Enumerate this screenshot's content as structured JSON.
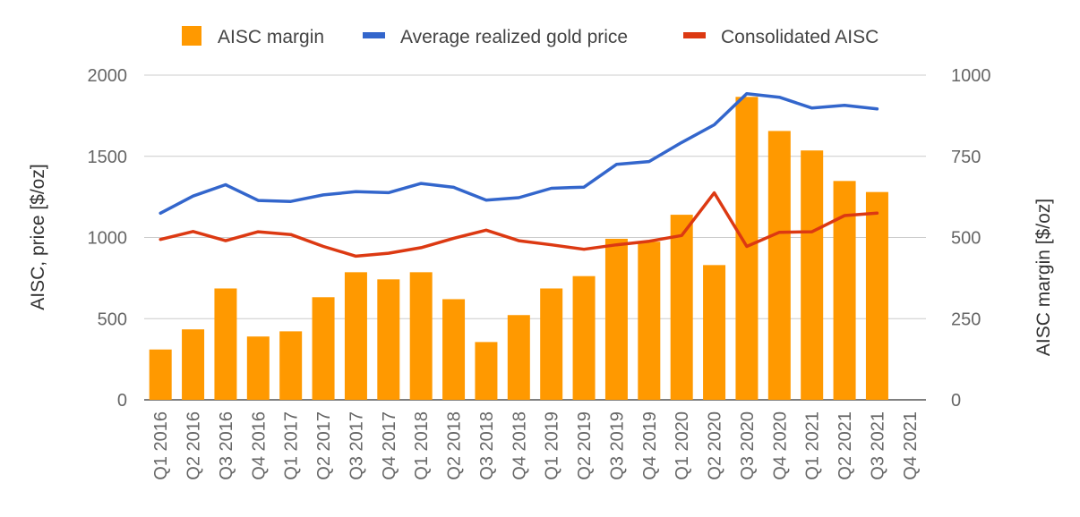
{
  "chart_data": {
    "type": "bar",
    "categories": [
      "Q1 2016",
      "Q2 2016",
      "Q3 2016",
      "Q4 2016",
      "Q1 2017",
      "Q2 2017",
      "Q3 2017",
      "Q4 2017",
      "Q1 2018",
      "Q2 2018",
      "Q3 2018",
      "Q4 2018",
      "Q1 2019",
      "Q2 2019",
      "Q3 2019",
      "Q4 2019",
      "Q1 2020",
      "Q2 2020",
      "Q3 2020",
      "Q4 2020",
      "Q1 2021",
      "Q2 2021",
      "Q3 2021",
      "Q4 2021"
    ],
    "series": [
      {
        "name": "AISC margin",
        "kind": "bar",
        "axis": "right",
        "color": "#ff9900",
        "values": [
          155,
          217,
          343,
          195,
          211,
          316,
          393,
          371,
          393,
          310,
          178,
          261,
          343,
          381,
          496,
          487,
          570,
          415,
          933,
          828,
          768,
          674,
          640,
          null
        ]
      },
      {
        "name": "Average realized gold price",
        "kind": "line",
        "axis": "left",
        "color": "#3366cc",
        "values": [
          1150,
          1255,
          1325,
          1228,
          1222,
          1262,
          1282,
          1276,
          1333,
          1309,
          1230,
          1245,
          1303,
          1310,
          1450,
          1468,
          1585,
          1694,
          1886,
          1864,
          1797,
          1814,
          1792,
          null
        ]
      },
      {
        "name": "Consolidated AISC",
        "kind": "line",
        "axis": "left",
        "color": "#dc3912",
        "values": [
          988,
          1037,
          980,
          1035,
          1018,
          945,
          885,
          903,
          937,
          995,
          1045,
          980,
          955,
          927,
          955,
          977,
          1012,
          1275,
          945,
          1032,
          1035,
          1135,
          1150,
          null
        ]
      }
    ],
    "y_left": {
      "label": "AISC, price [$/oz]",
      "min": 0,
      "max": 2000,
      "ticks": [
        0,
        500,
        1000,
        1500,
        2000
      ]
    },
    "y_right": {
      "label": "AISC margin [$/oz]",
      "min": 0,
      "max": 1000,
      "ticks": [
        0,
        250,
        500,
        750,
        1000
      ]
    },
    "grid": true,
    "legend": "top-center"
  }
}
